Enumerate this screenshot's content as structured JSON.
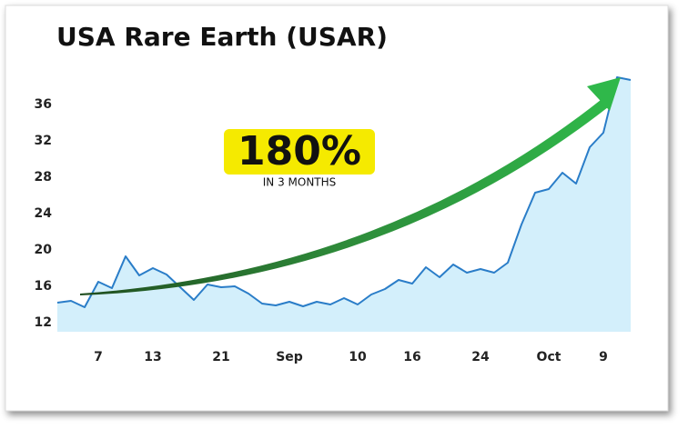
{
  "chart_data": {
    "type": "area",
    "title": "USA Rare Earth (USAR)",
    "annotation": "180%",
    "annotation_subtitle": "IN 3 MONTHS",
    "categories": [
      null,
      null,
      null,
      "7",
      null,
      null,
      null,
      "13",
      null,
      null,
      null,
      null,
      "21",
      null,
      null,
      null,
      null,
      "Sep",
      null,
      null,
      null,
      null,
      "10",
      null,
      null,
      null,
      "16",
      null,
      null,
      null,
      null,
      "24",
      null,
      null,
      null,
      null,
      "Oct",
      null,
      null,
      null,
      "9",
      null,
      null
    ],
    "series": [
      {
        "name": "USAR",
        "color": "#2a7dc8",
        "fill": "#d3effb",
        "values": [
          14.2,
          14.4,
          13.7,
          16.5,
          15.8,
          19.3,
          17.2,
          18.0,
          17.3,
          15.9,
          14.5,
          16.2,
          15.9,
          16.0,
          15.2,
          14.1,
          13.9,
          14.3,
          13.8,
          14.3,
          14.0,
          14.7,
          14.0,
          15.1,
          15.7,
          16.7,
          16.3,
          18.1,
          17.0,
          18.4,
          17.5,
          17.9,
          17.5,
          18.6,
          22.8,
          26.3,
          26.7,
          28.5,
          27.3,
          31.3,
          32.9,
          39.0,
          38.7
        ]
      }
    ],
    "ylim": [
      11,
      39
    ],
    "yticks": [
      12,
      16,
      20,
      24,
      28,
      32,
      36
    ],
    "grid": false
  }
}
